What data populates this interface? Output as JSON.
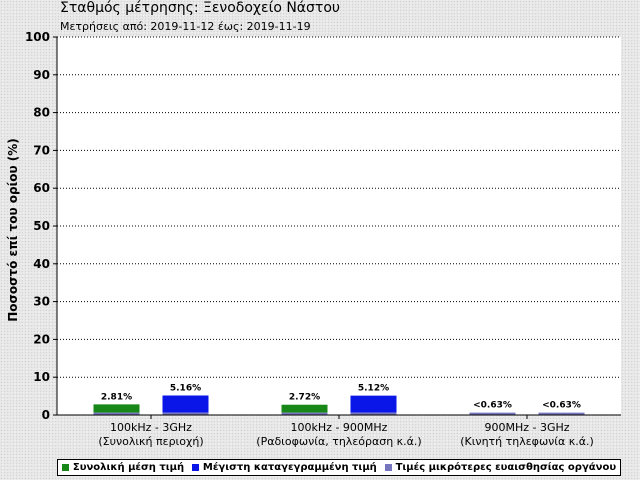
{
  "title": "Σταθμός μέτρησης: Ξενοδοχείο Νάστου",
  "subtitle": "Μετρήσεις από: 2019-11-12 έως: 2019-11-19",
  "chart_data": {
    "type": "bar",
    "ylabel": "Ποσοστό επί του ορίου (%)",
    "ylim": [
      0,
      100
    ],
    "yticks": [
      "0",
      "10",
      "20",
      "30",
      "40",
      "50",
      "60",
      "70",
      "80",
      "90",
      "100"
    ],
    "grid": true,
    "legend_position": "bottom",
    "categories": [
      {
        "line1": "100kHz - 3GHz",
        "line2": "(Συνολική περιοχή)"
      },
      {
        "line1": "100kHz - 900MHz",
        "line2": "(Ραδιοφωνία, τηλεόραση κ.ά.)"
      },
      {
        "line1": "900MHz - 3GHz",
        "line2": "(Κινητή τηλεφωνία κ.ά.)"
      }
    ],
    "series": [
      {
        "name": "Συνολική μέση τιμή",
        "color": "#178717",
        "values": [
          2.81,
          2.72,
          0.63
        ],
        "labels": [
          "2.81%",
          "2.72%",
          "<0.63%"
        ]
      },
      {
        "name": "Μέγιστη καταγεγραμμένη τιμή",
        "color": "#0a16e8",
        "values": [
          5.16,
          5.12,
          0.63
        ],
        "labels": [
          "5.16%",
          "5.12%",
          "<0.63%"
        ]
      },
      {
        "name": "Τιμές μικρότερες ευαισθησίας οργάνου",
        "color": "#7676c0",
        "values": [
          0.63,
          0.63,
          0.63
        ],
        "show_labels": false
      }
    ]
  }
}
